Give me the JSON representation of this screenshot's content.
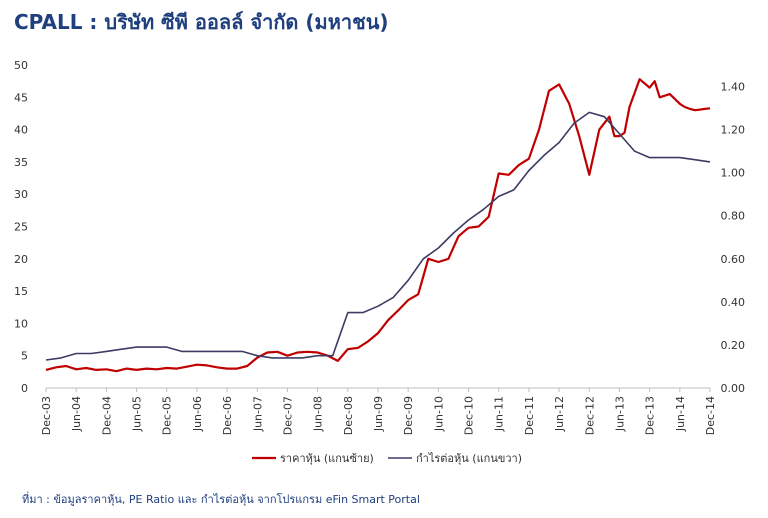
{
  "title": "CPALL : บริษัท ซีพี ออลล์ จำกัด (มหาชน)",
  "source": "ที่มา : ข้อมูลราคาหุ้น, PE Ratio และ กำไรต่อหุ้น จากโปรแกรม eFin Smart Portal",
  "chart_data": {
    "type": "line",
    "title": "",
    "x_labels": [
      "Dec-03",
      "Jun-04",
      "Dec-04",
      "Jun-05",
      "Dec-05",
      "Jun-06",
      "Dec-06",
      "Jun-07",
      "Dec-07",
      "Jun-08",
      "Dec-08",
      "Jun-09",
      "Dec-09",
      "Jun-10",
      "Dec-10",
      "Jun-11",
      "Dec-11",
      "Jun-12",
      "Dec-12",
      "Jun-13",
      "Dec-13",
      "Jun-14",
      "Dec-14"
    ],
    "xlim": [
      0,
      132
    ],
    "left_axis": {
      "ylim": [
        0,
        50
      ],
      "ticks": [
        "0",
        "5",
        "10",
        "15",
        "20",
        "25",
        "30",
        "35",
        "40",
        "45",
        "50"
      ]
    },
    "right_axis": {
      "ylim": [
        0,
        1.5
      ],
      "ticks": [
        "0.00",
        "0.20",
        "0.40",
        "0.60",
        "0.80",
        "1.00",
        "1.20",
        "1.40"
      ]
    },
    "gridlines": false,
    "legend_position": "bottom",
    "series": [
      {
        "name": "ราคาหุ้น (แกนซ้าย)",
        "axis": "left",
        "color": "#c00000",
        "x": [
          0,
          2,
          4,
          6,
          8,
          10,
          12,
          14,
          16,
          18,
          20,
          22,
          24,
          26,
          28,
          30,
          32,
          34,
          36,
          38,
          40,
          42,
          44,
          46,
          48,
          50,
          52,
          54,
          56,
          58,
          60,
          62,
          64,
          66,
          68,
          70,
          72,
          74,
          76,
          78,
          80,
          82,
          84,
          86,
          88,
          90,
          92,
          94,
          96,
          98,
          100,
          102,
          104,
          106,
          108,
          110,
          112,
          113,
          114,
          115,
          116,
          118,
          120,
          121,
          122,
          124,
          126,
          127,
          128,
          129,
          130,
          131,
          132
        ],
        "values": [
          2.8,
          3.2,
          3.4,
          2.9,
          3.1,
          2.8,
          2.9,
          2.6,
          3.0,
          2.8,
          3.0,
          2.9,
          3.1,
          3.0,
          3.3,
          3.6,
          3.5,
          3.2,
          3.0,
          3.0,
          3.4,
          4.7,
          5.5,
          5.6,
          5.0,
          5.5,
          5.6,
          5.5,
          5.0,
          4.2,
          6.0,
          6.2,
          7.2,
          8.5,
          10.5,
          12.0,
          13.6,
          14.5,
          20.0,
          19.5,
          20.0,
          23.5,
          24.8,
          25.0,
          26.5,
          33.2,
          33.0,
          34.5,
          35.5,
          40.0,
          46.0,
          47.0,
          44.0,
          39.0,
          33.0,
          40.0,
          42.0,
          39.0,
          39.0,
          39.5,
          43.5,
          47.8,
          46.5,
          47.5,
          45.0,
          45.5,
          44.0,
          43.5,
          43.2,
          43.0,
          43.1,
          43.2,
          43.3
        ]
      },
      {
        "name": "กำไรต่อหุ้น (แกนขวา)",
        "axis": "right",
        "color": "#3c3c64",
        "x": [
          0,
          3,
          6,
          9,
          12,
          15,
          18,
          21,
          24,
          27,
          30,
          33,
          36,
          39,
          42,
          45,
          48,
          51,
          54,
          57,
          60,
          63,
          66,
          69,
          72,
          75,
          78,
          81,
          84,
          87,
          90,
          93,
          96,
          99,
          102,
          105,
          108,
          111,
          114,
          117,
          120,
          123,
          126,
          129,
          132
        ],
        "values": [
          0.13,
          0.14,
          0.16,
          0.16,
          0.17,
          0.18,
          0.19,
          0.19,
          0.19,
          0.17,
          0.17,
          0.17,
          0.17,
          0.17,
          0.15,
          0.14,
          0.14,
          0.14,
          0.15,
          0.15,
          0.35,
          0.35,
          0.38,
          0.42,
          0.5,
          0.6,
          0.65,
          0.72,
          0.78,
          0.83,
          0.89,
          0.92,
          1.01,
          1.08,
          1.14,
          1.23,
          1.28,
          1.26,
          1.18,
          1.1,
          1.07,
          1.07,
          1.07,
          1.06,
          1.05
        ]
      }
    ]
  }
}
